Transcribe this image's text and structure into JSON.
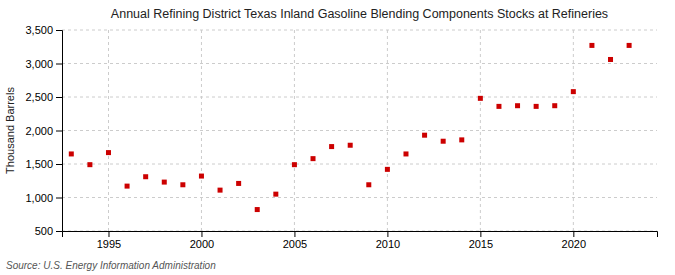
{
  "chart_data": {
    "type": "scatter",
    "title": "Annual Refining District Texas Inland Gasoline Blending Components Stocks at Refineries",
    "ylabel": "Thousand Barrels",
    "annotations": [
      "Source: U.S. Energy Information Administration"
    ],
    "x": [
      1993,
      1994,
      1995,
      1996,
      1997,
      1998,
      1999,
      2000,
      2001,
      2002,
      2003,
      2004,
      2005,
      2006,
      2007,
      2008,
      2009,
      2010,
      2011,
      2012,
      2013,
      2014,
      2015,
      2016,
      2017,
      2018,
      2019,
      2020,
      2021,
      2022,
      2023
    ],
    "values": [
      1650,
      1490,
      1670,
      1170,
      1310,
      1230,
      1190,
      1320,
      1110,
      1210,
      820,
      1050,
      1490,
      1580,
      1760,
      1780,
      1190,
      1420,
      1650,
      1930,
      1840,
      1860,
      2480,
      2360,
      2370,
      2360,
      2370,
      2580,
      3270,
      3060,
      3270
    ],
    "color": "#cc0000",
    "marker": "square",
    "xlim": [
      1992.5,
      2024.5
    ],
    "xticks": [
      1995,
      2000,
      2005,
      2010,
      2015,
      2020
    ],
    "ylim": [
      500,
      3500
    ],
    "yticks": [
      500,
      {
        "value": 1000,
        "label": "1,000"
      },
      {
        "value": 1500,
        "label": "1,500"
      },
      {
        "value": 2000,
        "label": "2,000"
      },
      {
        "value": 2500,
        "label": "2,500"
      },
      {
        "value": 3000,
        "label": "3,000"
      },
      {
        "value": 3500,
        "label": "3,500"
      }
    ],
    "grid": true
  }
}
